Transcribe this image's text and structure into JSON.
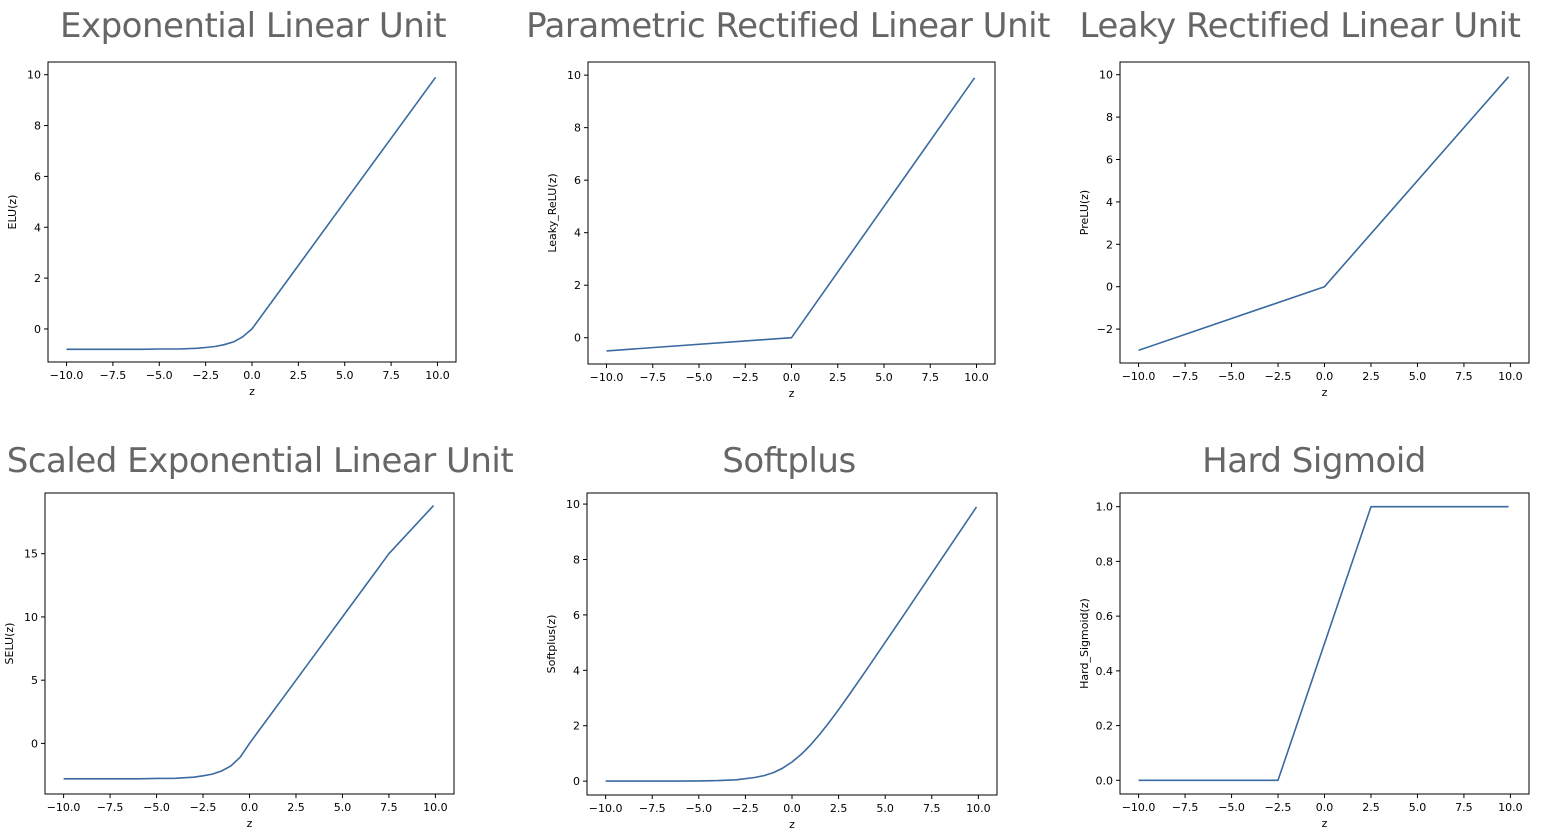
{
  "chart_data": [
    {
      "type": "line",
      "title": "Exponential Linear Unit",
      "xlabel": "z",
      "ylabel": "ELU(z)",
      "xlim": [
        -11,
        11
      ],
      "ylim": [
        -1.3,
        10.5
      ],
      "xticks": [
        -10.0,
        -7.5,
        -5.0,
        -2.5,
        0.0,
        2.5,
        5.0,
        7.5,
        10.0
      ],
      "xtick_labels": [
        "−10.0",
        "−7.5",
        "−5.0",
        "−2.5",
        "0.0",
        "2.5",
        "5.0",
        "7.5",
        "10.0"
      ],
      "yticks": [
        0,
        2,
        4,
        6,
        8,
        10
      ],
      "ytick_labels": [
        "0",
        "2",
        "4",
        "6",
        "8",
        "10"
      ],
      "series": [
        {
          "color": "#3a6aa0",
          "x": [
            -10,
            -8,
            -6,
            -5,
            -4,
            -3,
            -2.5,
            -2,
            -1.5,
            -1,
            -0.5,
            0,
            2.5,
            5,
            7.5,
            9.9
          ],
          "y": [
            -0.8,
            -0.8,
            -0.8,
            -0.79,
            -0.79,
            -0.76,
            -0.73,
            -0.69,
            -0.62,
            -0.51,
            -0.31,
            0,
            2.5,
            5,
            7.5,
            9.9
          ]
        }
      ]
    },
    {
      "type": "line",
      "title": "Parametric Rectified Linear Unit",
      "xlabel": "z",
      "ylabel": "Leaky_ReLU(z)",
      "xlim": [
        -11,
        11
      ],
      "ylim": [
        -1,
        10.5
      ],
      "xticks": [
        -10.0,
        -7.5,
        -5.0,
        -2.5,
        0.0,
        2.5,
        5.0,
        7.5,
        10.0
      ],
      "xtick_labels": [
        "−10.0",
        "−7.5",
        "−5.0",
        "−2.5",
        "0.0",
        "2.5",
        "5.0",
        "7.5",
        "10.0"
      ],
      "yticks": [
        0,
        2,
        4,
        6,
        8,
        10
      ],
      "ytick_labels": [
        "0",
        "2",
        "4",
        "6",
        "8",
        "10"
      ],
      "series": [
        {
          "color": "#3a6aa0",
          "x": [
            -10,
            0,
            9.9
          ],
          "y": [
            -0.5,
            0,
            9.9
          ]
        }
      ]
    },
    {
      "type": "line",
      "title": "Leaky Rectified Linear Unit",
      "xlabel": "z",
      "ylabel": "PreLU(z)",
      "xlim": [
        -11,
        11
      ],
      "ylim": [
        -3.6,
        10.6
      ],
      "xticks": [
        -10.0,
        -7.5,
        -5.0,
        -2.5,
        0.0,
        2.5,
        5.0,
        7.5,
        10.0
      ],
      "xtick_labels": [
        "−10.0",
        "−7.5",
        "−5.0",
        "−2.5",
        "0.0",
        "2.5",
        "5.0",
        "7.5",
        "10.0"
      ],
      "yticks": [
        -2,
        0,
        2,
        4,
        6,
        8,
        10
      ],
      "ytick_labels": [
        "−2",
        "0",
        "2",
        "4",
        "6",
        "8",
        "10"
      ],
      "series": [
        {
          "color": "#3a6aa0",
          "x": [
            -10,
            0,
            9.9
          ],
          "y": [
            -3.0,
            0,
            9.9
          ]
        }
      ]
    },
    {
      "type": "line",
      "title": "Scaled Exponential Linear Unit",
      "xlabel": "z",
      "ylabel": "SELU(z)",
      "xlim": [
        -11,
        11
      ],
      "ylim": [
        -4,
        19.8
      ],
      "xticks": [
        -10.0,
        -7.5,
        -5.0,
        -2.5,
        0.0,
        2.5,
        5.0,
        7.5,
        10.0
      ],
      "xtick_labels": [
        "−10.0",
        "−7.5",
        "−5.0",
        "−2.5",
        "0.0",
        "2.5",
        "5.0",
        "7.5",
        "10.0"
      ],
      "yticks": [
        0,
        5,
        10,
        15
      ],
      "ytick_labels": [
        "0",
        "5",
        "10",
        "15"
      ],
      "series": [
        {
          "color": "#3a6aa0",
          "x": [
            -10,
            -8,
            -6,
            -5,
            -4,
            -3,
            -2.5,
            -2,
            -1.5,
            -1,
            -0.5,
            0,
            2.5,
            5,
            7.5,
            9.9
          ],
          "y": [
            -2.8,
            -2.8,
            -2.8,
            -2.77,
            -2.76,
            -2.67,
            -2.56,
            -2.43,
            -2.18,
            -1.78,
            -1.09,
            0,
            5,
            10,
            15,
            18.8
          ]
        }
      ]
    },
    {
      "type": "line",
      "title": "Softplus",
      "xlabel": "z",
      "ylabel": "Softplus(z)",
      "xlim": [
        -11,
        11
      ],
      "ylim": [
        -0.5,
        10.4
      ],
      "xticks": [
        -10.0,
        -7.5,
        -5.0,
        -2.5,
        0.0,
        2.5,
        5.0,
        7.5,
        10.0
      ],
      "xtick_labels": [
        "−10.0",
        "−7.5",
        "−5.0",
        "−2.5",
        "0.0",
        "2.5",
        "5.0",
        "7.5",
        "10.0"
      ],
      "yticks": [
        0,
        2,
        4,
        6,
        8,
        10
      ],
      "ytick_labels": [
        "0",
        "2",
        "4",
        "6",
        "8",
        "10"
      ],
      "series": [
        {
          "color": "#3a6aa0",
          "x": [
            -10,
            -8,
            -6,
            -5,
            -4,
            -3,
            -2,
            -1.5,
            -1,
            -0.5,
            0,
            0.5,
            1,
            1.5,
            2,
            2.5,
            3,
            4,
            5,
            6,
            7.5,
            9.9
          ],
          "y": [
            0,
            0,
            0,
            0.01,
            0.02,
            0.05,
            0.13,
            0.2,
            0.31,
            0.47,
            0.69,
            0.97,
            1.31,
            1.7,
            2.13,
            2.58,
            3.05,
            4.02,
            5.01,
            6.0,
            7.5,
            9.9
          ]
        }
      ]
    },
    {
      "type": "line",
      "title": "Hard Sigmoid",
      "xlabel": "z",
      "ylabel": "Hard_Sigmoid(z)",
      "xlim": [
        -11,
        11
      ],
      "ylim": [
        -0.05,
        1.05
      ],
      "xticks": [
        -10.0,
        -7.5,
        -5.0,
        -2.5,
        0.0,
        2.5,
        5.0,
        7.5,
        10.0
      ],
      "xtick_labels": [
        "−10.0",
        "−7.5",
        "−5.0",
        "−2.5",
        "0.0",
        "2.5",
        "5.0",
        "7.5",
        "10.0"
      ],
      "yticks": [
        0.0,
        0.2,
        0.4,
        0.6,
        0.8,
        1.0
      ],
      "ytick_labels": [
        "0.0",
        "0.2",
        "0.4",
        "0.6",
        "0.8",
        "1.0"
      ],
      "series": [
        {
          "color": "#3a6aa0",
          "x": [
            -10,
            -2.5,
            2.5,
            9.9
          ],
          "y": [
            0,
            0,
            1,
            1
          ]
        }
      ]
    }
  ]
}
